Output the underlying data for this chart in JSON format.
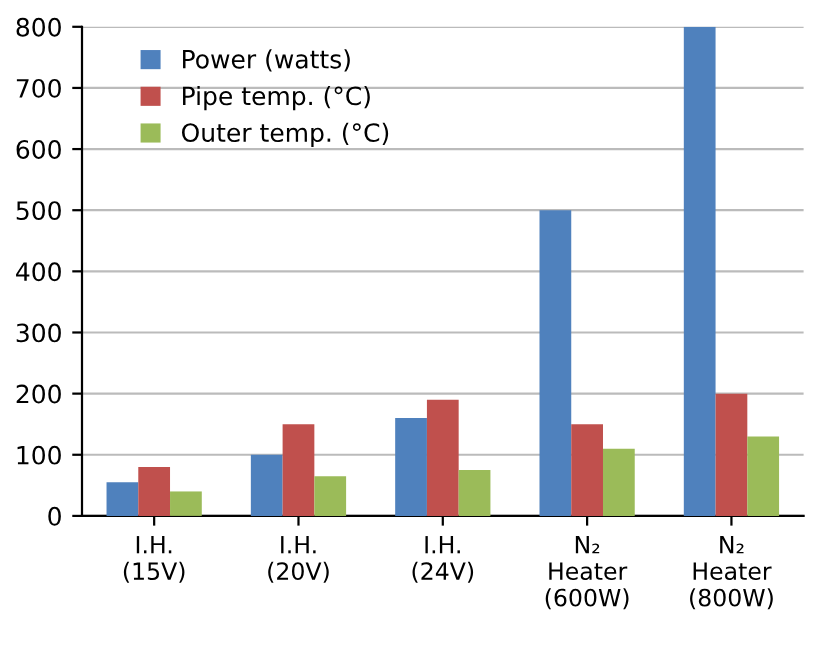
{
  "chart_data": {
    "type": "bar",
    "categories": [
      "I.H.\n(15V)",
      "I.H.\n(20V)",
      "I.H.\n(24V)",
      "N₂\nHeater\n(600W)",
      "N₂\nHeater\n(800W)"
    ],
    "series": [
      {
        "name": "Power (watts)",
        "color": "#4f81bd",
        "values": [
          55,
          100,
          160,
          500,
          800
        ]
      },
      {
        "name": "Pipe temp. (°C)",
        "color": "#c0504d",
        "values": [
          80,
          150,
          190,
          150,
          200
        ]
      },
      {
        "name": "Outer temp. (°C)",
        "color": "#9bbb59",
        "values": [
          40,
          65,
          75,
          110,
          130
        ]
      }
    ],
    "ylim": [
      0,
      800
    ],
    "yticks": [
      0,
      100,
      200,
      300,
      400,
      500,
      600,
      700,
      800
    ],
    "grid": "y",
    "legend": "top left"
  }
}
